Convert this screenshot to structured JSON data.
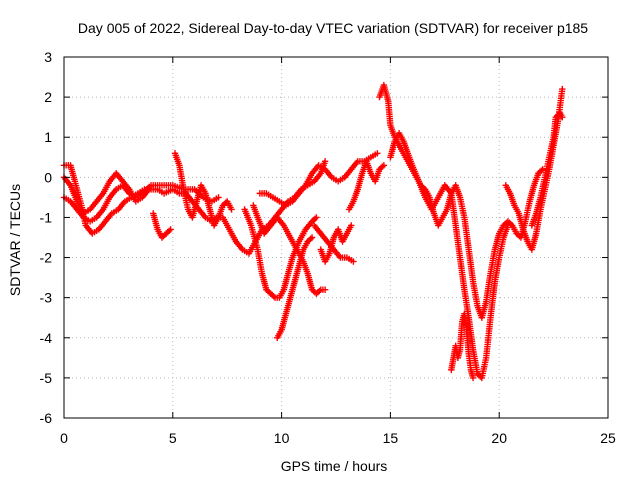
{
  "chart_data": {
    "type": "scatter",
    "title": "Day 005 of 2022, Sidereal Day-to-day VTEC variation (SDTVAR) for receiver p185",
    "xlabel": "GPS time / hours",
    "ylabel": "SDTVAR / TECUs",
    "xlim": [
      0,
      25
    ],
    "ylim": [
      -6,
      3
    ],
    "xticks": [
      0,
      5,
      10,
      15,
      20,
      25
    ],
    "yticks": [
      -6,
      -5,
      -4,
      -3,
      -2,
      -1,
      0,
      1,
      2,
      3
    ],
    "grid": true,
    "marker": "+",
    "color": "#ff0000",
    "series": [
      {
        "name": "s1",
        "points": [
          [
            0.0,
            0.3
          ],
          [
            0.3,
            0.3
          ],
          [
            0.5,
            -0.1
          ],
          [
            0.8,
            -0.7
          ],
          [
            1.0,
            -1.2
          ],
          [
            1.3,
            -1.4
          ],
          [
            1.6,
            -1.3
          ],
          [
            1.9,
            -1.1
          ],
          [
            2.2,
            -0.9
          ],
          [
            2.5,
            -0.8
          ],
          [
            2.8,
            -0.6
          ],
          [
            3.1,
            -0.5
          ],
          [
            3.4,
            -0.4
          ],
          [
            3.7,
            -0.3
          ],
          [
            4.0,
            -0.3
          ],
          [
            4.3,
            -0.3
          ],
          [
            4.6,
            -0.4
          ],
          [
            5.0,
            -0.3
          ],
          [
            5.3,
            -0.4
          ],
          [
            5.6,
            -0.4
          ],
          [
            5.9,
            -0.6
          ],
          [
            6.2,
            -0.8
          ],
          [
            6.5,
            -1.0
          ],
          [
            6.8,
            -1.1
          ],
          [
            7.0,
            -1.0
          ],
          [
            7.3,
            -1.0
          ],
          [
            7.6,
            -1.3
          ],
          [
            7.9,
            -1.6
          ],
          [
            8.2,
            -1.8
          ],
          [
            8.5,
            -1.9
          ],
          [
            8.8,
            -1.6
          ],
          [
            9.1,
            -1.3
          ],
          [
            9.4,
            -1.2
          ],
          [
            9.7,
            -1.0
          ],
          [
            10.0,
            -0.8
          ],
          [
            10.3,
            -0.6
          ],
          [
            10.6,
            -0.5
          ],
          [
            10.9,
            -0.3
          ],
          [
            11.2,
            -0.2
          ],
          [
            11.5,
            -0.1
          ],
          [
            11.8,
            0.1
          ],
          [
            12.0,
            0.4
          ]
        ]
      },
      {
        "name": "s2",
        "points": [
          [
            0.0,
            -0.5
          ],
          [
            0.3,
            -0.6
          ],
          [
            0.6,
            -0.8
          ],
          [
            0.9,
            -1.0
          ],
          [
            1.2,
            -1.1
          ],
          [
            1.5,
            -1.0
          ],
          [
            1.8,
            -0.8
          ],
          [
            2.1,
            -0.5
          ],
          [
            2.4,
            -0.3
          ],
          [
            2.7,
            -0.2
          ],
          [
            3.0,
            -0.4
          ],
          [
            3.3,
            -0.5
          ],
          [
            3.6,
            -0.4
          ],
          [
            4.0,
            -0.2
          ],
          [
            4.5,
            -0.2
          ],
          [
            5.0,
            -0.2
          ],
          [
            5.5,
            -0.3
          ],
          [
            6.0,
            -0.3
          ],
          [
            6.4,
            -0.5
          ],
          [
            6.8,
            -0.6
          ],
          [
            7.1,
            -0.5
          ]
        ]
      },
      {
        "name": "s3",
        "points": [
          [
            0.0,
            0.0
          ],
          [
            0.3,
            -0.2
          ],
          [
            0.6,
            -0.6
          ],
          [
            0.9,
            -0.9
          ],
          [
            1.2,
            -0.8
          ],
          [
            1.5,
            -0.6
          ],
          [
            1.8,
            -0.4
          ],
          [
            2.1,
            -0.1
          ],
          [
            2.4,
            0.1
          ],
          [
            2.7,
            -0.1
          ],
          [
            3.0,
            -0.3
          ],
          [
            3.3,
            -0.6
          ],
          [
            3.6,
            -0.5
          ],
          [
            3.9,
            -0.3
          ]
        ]
      },
      {
        "name": "s4",
        "points": [
          [
            4.1,
            -0.9
          ],
          [
            4.3,
            -1.3
          ],
          [
            4.5,
            -1.5
          ],
          [
            4.7,
            -1.4
          ],
          [
            4.9,
            -1.3
          ]
        ]
      },
      {
        "name": "s5",
        "points": [
          [
            5.1,
            0.6
          ],
          [
            5.3,
            0.3
          ],
          [
            5.5,
            -0.3
          ],
          [
            5.7,
            -0.8
          ],
          [
            5.9,
            -1.0
          ],
          [
            6.1,
            -0.6
          ],
          [
            6.3,
            -0.2
          ],
          [
            6.5,
            -0.4
          ],
          [
            6.7,
            -0.8
          ],
          [
            6.9,
            -1.2
          ],
          [
            7.1,
            -1.0
          ],
          [
            7.3,
            -0.7
          ],
          [
            7.5,
            -0.6
          ],
          [
            7.7,
            -0.8
          ]
        ]
      },
      {
        "name": "s6",
        "points": [
          [
            8.3,
            -0.8
          ],
          [
            8.6,
            -1.2
          ],
          [
            8.9,
            -1.8
          ],
          [
            9.1,
            -2.4
          ],
          [
            9.3,
            -2.8
          ],
          [
            9.5,
            -2.9
          ],
          [
            9.7,
            -3.0
          ],
          [
            9.9,
            -3.0
          ],
          [
            10.1,
            -2.8
          ],
          [
            10.3,
            -2.4
          ],
          [
            10.5,
            -2.0
          ],
          [
            10.8,
            -1.6
          ],
          [
            11.1,
            -1.3
          ],
          [
            11.4,
            -1.1
          ],
          [
            11.6,
            -1.0
          ]
        ]
      },
      {
        "name": "s7",
        "points": [
          [
            8.7,
            -0.7
          ],
          [
            8.9,
            -1.0
          ],
          [
            9.2,
            -1.4
          ],
          [
            9.5,
            -1.2
          ],
          [
            9.8,
            -1.0
          ],
          [
            10.1,
            -1.2
          ],
          [
            10.4,
            -1.5
          ],
          [
            10.7,
            -1.8
          ],
          [
            11.0,
            -2.1
          ],
          [
            11.2,
            -2.4
          ],
          [
            11.4,
            -2.8
          ],
          [
            11.6,
            -2.9
          ],
          [
            11.8,
            -2.8
          ],
          [
            12.0,
            -2.8
          ]
        ]
      },
      {
        "name": "s8",
        "points": [
          [
            9.8,
            -4.0
          ],
          [
            10.0,
            -3.8
          ],
          [
            10.2,
            -3.4
          ],
          [
            10.4,
            -3.0
          ],
          [
            10.6,
            -2.6
          ],
          [
            10.8,
            -2.2
          ],
          [
            11.0,
            -1.8
          ],
          [
            11.2,
            -1.6
          ],
          [
            11.4,
            -1.5
          ]
        ]
      },
      {
        "name": "s9",
        "points": [
          [
            9.0,
            -0.4
          ],
          [
            9.3,
            -0.4
          ],
          [
            9.6,
            -0.5
          ],
          [
            9.9,
            -0.6
          ],
          [
            10.2,
            -0.7
          ],
          [
            10.5,
            -0.6
          ],
          [
            10.8,
            -0.4
          ],
          [
            11.1,
            -0.2
          ],
          [
            11.4,
            0.1
          ],
          [
            11.7,
            0.3
          ],
          [
            12.0,
            0.2
          ],
          [
            12.3,
            0.0
          ],
          [
            12.6,
            -0.1
          ],
          [
            12.9,
            0.0
          ],
          [
            13.2,
            0.2
          ],
          [
            13.5,
            0.4
          ],
          [
            13.8,
            0.4
          ],
          [
            14.1,
            0.5
          ],
          [
            14.4,
            0.6
          ]
        ]
      },
      {
        "name": "s10",
        "points": [
          [
            11.5,
            -1.2
          ],
          [
            11.8,
            -1.4
          ],
          [
            12.1,
            -1.6
          ],
          [
            12.4,
            -1.8
          ],
          [
            12.7,
            -2.0
          ],
          [
            13.0,
            -2.0
          ],
          [
            13.3,
            -2.1
          ]
        ]
      },
      {
        "name": "s11",
        "points": [
          [
            11.8,
            -1.8
          ],
          [
            12.0,
            -2.1
          ],
          [
            12.2,
            -1.9
          ],
          [
            12.4,
            -1.5
          ],
          [
            12.6,
            -1.3
          ],
          [
            12.8,
            -1.6
          ],
          [
            13.0,
            -1.4
          ],
          [
            13.2,
            -1.2
          ]
        ]
      },
      {
        "name": "s12",
        "points": [
          [
            13.1,
            -0.8
          ],
          [
            13.3,
            -0.6
          ],
          [
            13.5,
            -0.3
          ],
          [
            13.7,
            0.1
          ],
          [
            13.9,
            0.4
          ],
          [
            14.1,
            0.1
          ],
          [
            14.3,
            -0.1
          ],
          [
            14.5,
            0.2
          ],
          [
            14.7,
            0.3
          ]
        ]
      },
      {
        "name": "s13",
        "points": [
          [
            14.5,
            2.0
          ],
          [
            14.7,
            2.3
          ],
          [
            14.9,
            1.9
          ],
          [
            15.0,
            1.3
          ],
          [
            15.2,
            1.0
          ],
          [
            15.4,
            0.8
          ],
          [
            15.6,
            0.6
          ],
          [
            15.8,
            0.4
          ],
          [
            16.0,
            0.2
          ],
          [
            16.2,
            0.0
          ],
          [
            16.4,
            -0.2
          ],
          [
            16.6,
            -0.3
          ],
          [
            16.8,
            -0.5
          ],
          [
            17.0,
            -0.9
          ],
          [
            17.2,
            -1.2
          ],
          [
            17.4,
            -1.0
          ],
          [
            17.6,
            -0.8
          ],
          [
            17.8,
            -0.4
          ],
          [
            18.0,
            -0.2
          ],
          [
            18.2,
            -0.5
          ],
          [
            18.4,
            -1.0
          ],
          [
            18.6,
            -1.8
          ],
          [
            18.8,
            -2.6
          ],
          [
            19.0,
            -3.2
          ],
          [
            19.2,
            -3.5
          ],
          [
            19.4,
            -3.1
          ],
          [
            19.6,
            -2.4
          ],
          [
            19.8,
            -1.8
          ],
          [
            20.0,
            -1.4
          ],
          [
            20.2,
            -1.2
          ],
          [
            20.4,
            -1.1
          ],
          [
            20.6,
            -1.2
          ],
          [
            20.8,
            -1.4
          ],
          [
            21.0,
            -1.5
          ],
          [
            21.2,
            -1.1
          ],
          [
            21.4,
            -0.6
          ],
          [
            21.6,
            -0.2
          ],
          [
            21.8,
            0.1
          ],
          [
            22.0,
            0.2
          ]
        ]
      },
      {
        "name": "s14",
        "points": [
          [
            15.0,
            0.5
          ],
          [
            15.2,
            0.9
          ],
          [
            15.4,
            1.1
          ],
          [
            15.6,
            0.9
          ],
          [
            15.8,
            0.6
          ],
          [
            16.0,
            0.3
          ],
          [
            16.3,
            -0.1
          ],
          [
            16.6,
            -0.5
          ],
          [
            16.9,
            -0.8
          ],
          [
            17.2,
            -0.5
          ],
          [
            17.5,
            -0.2
          ],
          [
            17.8,
            -0.4
          ],
          [
            18.0,
            -1.2
          ],
          [
            18.2,
            -2.0
          ],
          [
            18.4,
            -2.8
          ],
          [
            18.6,
            -3.5
          ],
          [
            18.8,
            -4.3
          ],
          [
            19.0,
            -4.9
          ],
          [
            19.2,
            -5.0
          ],
          [
            19.4,
            -4.5
          ],
          [
            19.6,
            -3.5
          ],
          [
            19.8,
            -2.6
          ],
          [
            20.0,
            -2.0
          ],
          [
            20.2,
            -1.5
          ],
          [
            20.4,
            -1.2
          ]
        ]
      },
      {
        "name": "s15",
        "points": [
          [
            17.8,
            -4.8
          ],
          [
            17.9,
            -4.5
          ],
          [
            18.0,
            -4.2
          ],
          [
            18.1,
            -4.5
          ],
          [
            18.2,
            -4.3
          ],
          [
            18.3,
            -3.6
          ],
          [
            18.4,
            -3.4
          ],
          [
            18.5,
            -3.8
          ],
          [
            18.6,
            -4.4
          ],
          [
            18.7,
            -4.8
          ],
          [
            18.8,
            -5.0
          ]
        ]
      },
      {
        "name": "s16",
        "points": [
          [
            20.3,
            -0.2
          ],
          [
            20.5,
            -0.4
          ],
          [
            20.7,
            -0.7
          ],
          [
            20.9,
            -0.9
          ],
          [
            21.1,
            -1.3
          ],
          [
            21.3,
            -1.6
          ],
          [
            21.5,
            -1.8
          ],
          [
            21.7,
            -1.4
          ],
          [
            21.9,
            -0.8
          ],
          [
            22.1,
            -0.3
          ],
          [
            22.3,
            0.2
          ],
          [
            22.5,
            0.8
          ],
          [
            22.7,
            1.4
          ],
          [
            22.8,
            1.8
          ],
          [
            22.9,
            2.2
          ]
        ]
      },
      {
        "name": "s17",
        "points": [
          [
            21.5,
            -1.2
          ],
          [
            21.7,
            -0.9
          ],
          [
            21.9,
            -0.5
          ],
          [
            22.1,
            0.0
          ],
          [
            22.3,
            0.5
          ],
          [
            22.5,
            1.0
          ],
          [
            22.6,
            1.5
          ],
          [
            22.8,
            1.6
          ],
          [
            22.9,
            1.5
          ]
        ]
      }
    ]
  }
}
